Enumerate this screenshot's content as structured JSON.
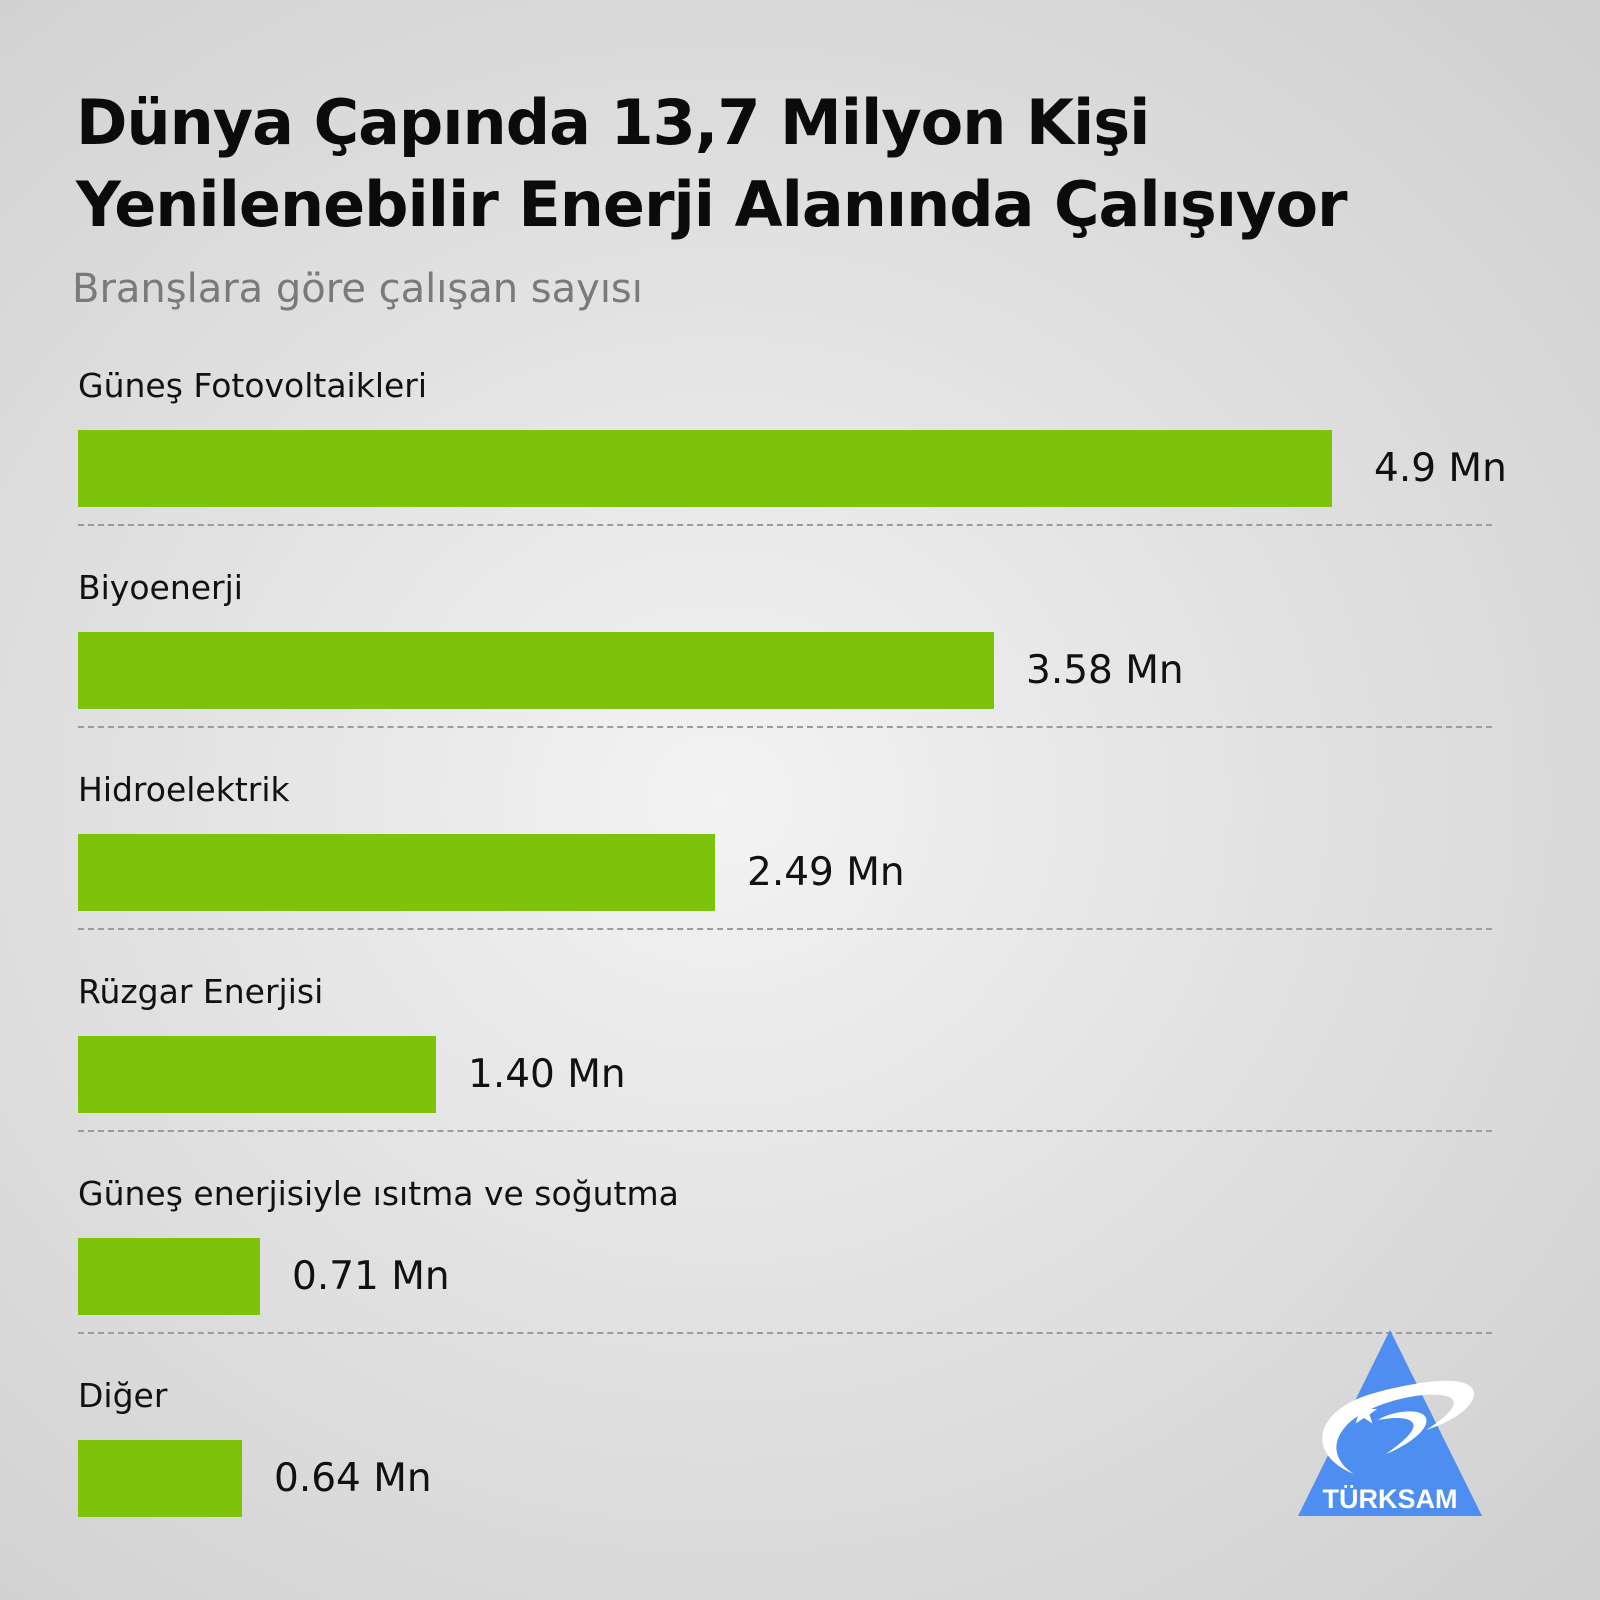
{
  "header": {
    "title_line1": "Dünya Çapında 13,7 Milyon Kişi",
    "title_line2": "Yenilenebilir Enerji Alanında Çalışıyor",
    "subtitle": "Branşlara göre çalışan sayısı"
  },
  "colors": {
    "bar": "#7dc20b",
    "logo": "#4d8ef0"
  },
  "chart_data": {
    "type": "bar",
    "orientation": "horizontal",
    "title": "Dünya Çapında 13,7 Milyon Kişi Yenilenebilir Enerji Alanında Çalışıyor",
    "subtitle": "Branşlara göre çalışan sayısı",
    "categories": [
      "Güneş Fotovoltaikleri",
      "Biyoenerji",
      "Hidroelektrik",
      "Rüzgar Enerjisi",
      "Güneş enerjisiyle ısıtma ve soğutma",
      "Diğer"
    ],
    "values": [
      4.9,
      3.58,
      2.49,
      1.4,
      0.71,
      0.64
    ],
    "value_labels": [
      "4.9 Mn",
      "3.58 Mn",
      "2.49 Mn",
      "1.40 Mn",
      "0.71 Mn",
      "0.64 Mn"
    ],
    "xlim": [
      0,
      4.9
    ],
    "grid": false,
    "legend": "none"
  },
  "logo": {
    "text": "TÜRKSAM"
  }
}
